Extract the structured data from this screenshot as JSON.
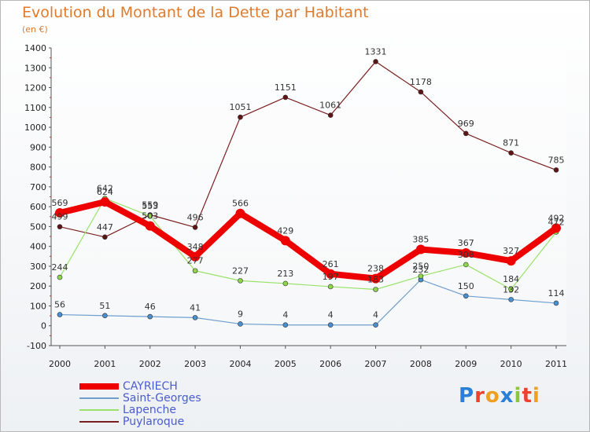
{
  "chart_data": {
    "type": "line",
    "title": "Evolution du Montant de la Dette par Habitant",
    "subtitle": "(en €)",
    "x": [
      "2000",
      "2001",
      "2002",
      "2003",
      "2004",
      "2005",
      "2006",
      "2007",
      "2008",
      "2009",
      "2010",
      "2011"
    ],
    "ylim": [
      -100,
      1400
    ],
    "yticks": [
      -100,
      0,
      100,
      200,
      300,
      400,
      500,
      600,
      700,
      800,
      900,
      1000,
      1100,
      1200,
      1300,
      1400
    ],
    "grid": false,
    "legend_position": "bottom-left",
    "series": [
      {
        "name": "CAYRIECH",
        "color": "#ee0000",
        "values": [
          569,
          624,
          503,
          348,
          566,
          429,
          261,
          238,
          385,
          367,
          327,
          492
        ]
      },
      {
        "name": "Saint-Georges",
        "color": "#6f9fcd",
        "values": [
          56,
          51,
          46,
          41,
          9,
          4,
          4,
          4,
          232,
          150,
          132,
          114
        ]
      },
      {
        "name": "Lapenche",
        "color": "#99e26a",
        "values": [
          244,
          642,
          553,
          277,
          227,
          213,
          197,
          183,
          250,
          308,
          184,
          472
        ]
      },
      {
        "name": "Puylaroque",
        "color": "#7a1f1f",
        "values": [
          499,
          447,
          559,
          496,
          1051,
          1151,
          1061,
          1331,
          1178,
          969,
          871,
          785
        ]
      }
    ]
  },
  "logo": {
    "letters": [
      "P",
      "r",
      "o",
      "x",
      "i",
      "t",
      "i"
    ],
    "colors": [
      "#2a7fd6",
      "#e8442e",
      "#f0a020",
      "#2a7fd6",
      "#8cc63f",
      "#e8442e",
      "#f0a020"
    ]
  }
}
